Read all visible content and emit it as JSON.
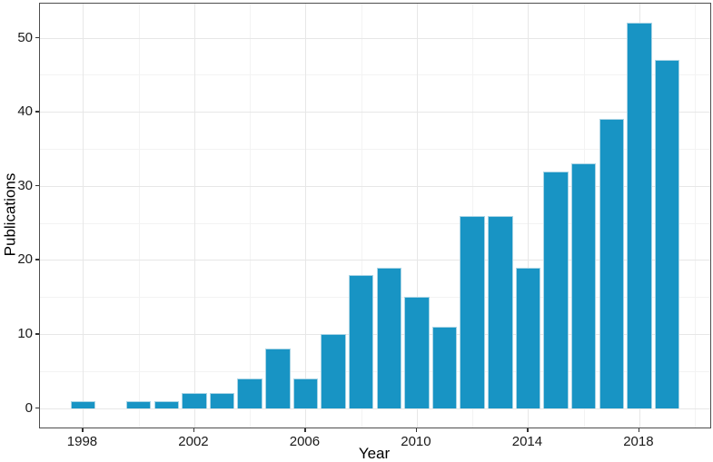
{
  "chart_data": {
    "type": "bar",
    "title": "",
    "xlabel": "Year",
    "ylabel": "Publications",
    "x": [
      1998,
      2000,
      2001,
      2002,
      2003,
      2004,
      2005,
      2006,
      2007,
      2008,
      2009,
      2010,
      2011,
      2012,
      2013,
      2014,
      2015,
      2016,
      2017,
      2018,
      2019
    ],
    "values": [
      1,
      1,
      1,
      2,
      2,
      4,
      8,
      4,
      10,
      18,
      19,
      15,
      11,
      26,
      26,
      19,
      32,
      33,
      39,
      52,
      47
    ],
    "x_ticks": [
      1998,
      2002,
      2006,
      2010,
      2014,
      2018
    ],
    "y_ticks": [
      0,
      10,
      20,
      30,
      40,
      50
    ],
    "x_minor_grid": [
      2000,
      2004,
      2008,
      2012,
      2016,
      2020
    ],
    "y_minor_grid": [
      5,
      15,
      25,
      35,
      45
    ],
    "xlim": [
      1996.45,
      2020.55
    ],
    "ylim": [
      -2.6,
      54.6
    ],
    "bar_width_years": 0.9,
    "grid": true,
    "legend": null,
    "colors": {
      "bar_fill": "#1894C4",
      "bar_border": "#A9D4E5",
      "grid_major": "#e7e7e7",
      "grid_minor": "#f3f3f3",
      "panel_border": "#4d4d4d",
      "background": "#ffffff"
    }
  }
}
